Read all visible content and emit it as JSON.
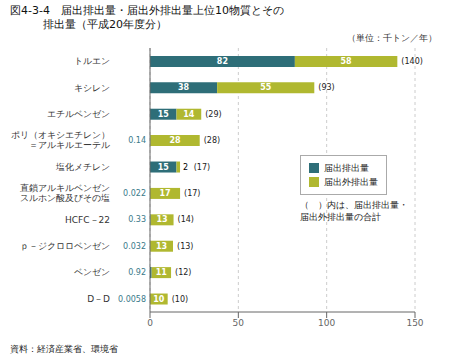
{
  "chart_data": {
    "type": "bar",
    "orientation": "horizontal",
    "stacked": true,
    "data_labels": true,
    "grid": true,
    "legend": "right",
    "title": "図4-3-4　届出排出量・届出外排出量上位10物質とその",
    "subtitle": "　　　排出量（平成20年度分）",
    "unit": "（単位：千トン／年）",
    "source": "資料：経済産業省、環境省",
    "notes": [
      "（　）内は、届出排出量・",
      "届出外排出量の合計"
    ],
    "categories": [
      "トルエン",
      "キシレン",
      "エチルベンゼン",
      "ポリ（オキシエチレン）\n＝アルキルエーテル",
      "塩化メチレン",
      "直鎖アルキルベンゼン\nスルホン酸及びその塩",
      "HCFC－22",
      "ｐ－ジクロロベンゼン",
      "ベンゼン",
      "D－D"
    ],
    "series": [
      {
        "name": "届出排出量",
        "color": "#2e6e78",
        "values": [
          82,
          38,
          15,
          0.14,
          15,
          0.022,
          0.33,
          0.032,
          0.92,
          0.0058
        ]
      },
      {
        "name": "届出外排出量",
        "color": "#b0b830",
        "values": [
          58,
          55,
          14,
          28,
          2,
          17,
          13,
          13,
          11,
          10
        ]
      }
    ],
    "total_labels": [
      "(140)",
      "(93)",
      "(29)",
      "(28)",
      "(17)",
      "(17)",
      "(14)",
      "(13)",
      "(12)",
      "(10)"
    ],
    "xlim": [
      0,
      150
    ],
    "xticks": [
      0,
      50,
      100,
      150
    ]
  }
}
